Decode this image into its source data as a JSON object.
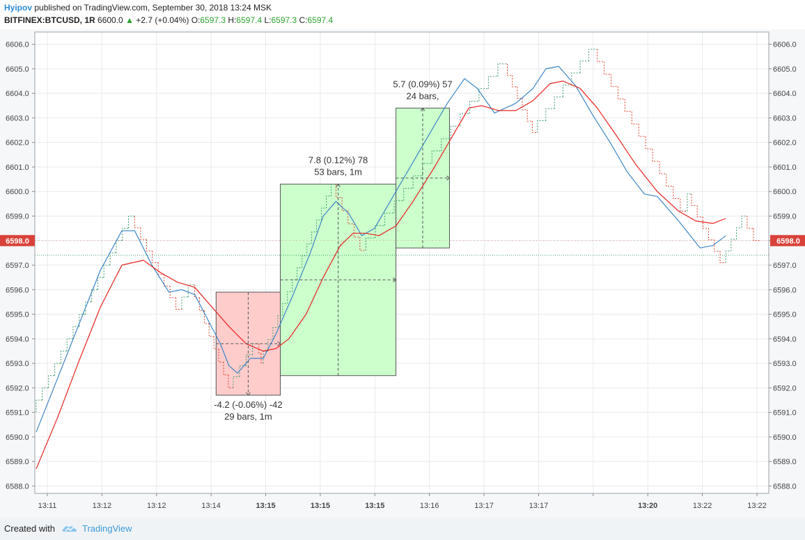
{
  "header": {
    "author": "Hyipov",
    "published": "published on TradingView.com, September 30, 2018 13:24 MSK",
    "symbol": "BITFINEX:BTCUSD, 1R",
    "last": "6600.0",
    "change": "+2.7 (+0.04%)",
    "o_label": "O:",
    "o_value": "6597.3",
    "h_label": "H:",
    "h_value": "6597.4",
    "l_label": "L:",
    "l_value": "6597.3",
    "c_label": "C:",
    "c_value": "6597.4"
  },
  "footer": {
    "created_with": "Created with",
    "brand": "TradingView",
    "logo_icon": "tradingview-cloud-icon"
  },
  "colors": {
    "up": "#3c9a6a",
    "down": "#e0402a",
    "ma_fast": "#3d85c6",
    "ma_slow": "#e8201c",
    "price_tag": "#d9423b",
    "profit_fill": "#ccffcc",
    "loss_fill": "#ffcccc"
  },
  "chart_data": {
    "type": "line",
    "ylim": [
      6587.7,
      6606.5
    ],
    "yticks": [
      6588,
      6589,
      6590,
      6591,
      6592,
      6593,
      6594,
      6595,
      6596,
      6597,
      6598,
      6599,
      6600,
      6601,
      6602,
      6603,
      6604,
      6605,
      6606
    ],
    "current_price": 6598.0,
    "last_close_line": 6597.4,
    "x_ticks": [
      {
        "label": "13:11",
        "bold": false
      },
      {
        "label": "13:12",
        "bold": false
      },
      {
        "label": "13:12",
        "bold": false
      },
      {
        "label": "13:14",
        "bold": false
      },
      {
        "label": "13:15",
        "bold": true
      },
      {
        "label": "13:15",
        "bold": true
      },
      {
        "label": "13:15",
        "bold": true
      },
      {
        "label": "13:16",
        "bold": false
      },
      {
        "label": "13:17",
        "bold": false
      },
      {
        "label": "13:17",
        "bold": false
      },
      {
        "label": "",
        "bold": false
      },
      {
        "label": "13:20",
        "bold": true
      },
      {
        "label": "13:22",
        "bold": false
      },
      {
        "label": "13:22",
        "bold": false
      }
    ],
    "renko_path": [
      [
        0,
        6591.0
      ],
      [
        23,
        6599.0
      ],
      [
        34,
        6595.2
      ],
      [
        37,
        6596.2
      ],
      [
        46,
        6592.0
      ],
      [
        52,
        6593.8
      ],
      [
        53,
        6593.0
      ],
      [
        70,
        6600.3
      ],
      [
        77,
        6597.6
      ],
      [
        110,
        6605.2
      ],
      [
        117,
        6602.4
      ],
      [
        131,
        6605.8
      ],
      [
        152,
        6599.2
      ],
      [
        153,
        6599.9
      ],
      [
        161,
        6597.1
      ],
      [
        166,
        6599.0
      ],
      [
        169,
        6598.0
      ]
    ],
    "series": [
      {
        "name": "",
        "role": "fast",
        "values": [
          [
            0,
            6590.2
          ],
          [
            5,
            6592.4
          ],
          [
            10,
            6594.6
          ],
          [
            15,
            6596.8
          ],
          [
            20,
            6598.4
          ],
          [
            23,
            6598.4
          ],
          [
            27,
            6597.0
          ],
          [
            31,
            6595.9
          ],
          [
            34,
            6596.0
          ],
          [
            37,
            6595.8
          ],
          [
            40,
            6594.8
          ],
          [
            43,
            6593.8
          ],
          [
            45,
            6592.9
          ],
          [
            47,
            6592.6
          ],
          [
            50,
            6593.2
          ],
          [
            53,
            6593.2
          ],
          [
            56,
            6594.2
          ],
          [
            60,
            6595.8
          ],
          [
            64,
            6597.5
          ],
          [
            67,
            6599.0
          ],
          [
            70,
            6599.6
          ],
          [
            73,
            6599.1
          ],
          [
            76,
            6598.2
          ],
          [
            79,
            6598.5
          ],
          [
            84,
            6600.0
          ],
          [
            90,
            6601.8
          ],
          [
            96,
            6603.6
          ],
          [
            100,
            6604.6
          ],
          [
            103,
            6604.2
          ],
          [
            107,
            6603.2
          ],
          [
            112,
            6603.6
          ],
          [
            116,
            6604.2
          ],
          [
            119,
            6605.0
          ],
          [
            122,
            6605.1
          ],
          [
            126,
            6604.3
          ],
          [
            130,
            6603.1
          ],
          [
            134,
            6602.0
          ],
          [
            138,
            6600.8
          ],
          [
            142,
            6599.9
          ],
          [
            145,
            6599.8
          ],
          [
            150,
            6598.8
          ],
          [
            155,
            6597.7
          ],
          [
            158,
            6597.8
          ],
          [
            161,
            6598.2
          ]
        ]
      },
      {
        "name": "",
        "role": "slow",
        "values": [
          [
            0,
            6588.7
          ],
          [
            5,
            6590.8
          ],
          [
            10,
            6593.1
          ],
          [
            15,
            6595.3
          ],
          [
            20,
            6597.0
          ],
          [
            25,
            6597.2
          ],
          [
            29,
            6596.7
          ],
          [
            33,
            6596.3
          ],
          [
            37,
            6596.1
          ],
          [
            41,
            6595.3
          ],
          [
            45,
            6594.5
          ],
          [
            49,
            6593.8
          ],
          [
            53,
            6593.5
          ],
          [
            56,
            6593.6
          ],
          [
            59,
            6594.0
          ],
          [
            63,
            6595.0
          ],
          [
            67,
            6596.5
          ],
          [
            71,
            6597.8
          ],
          [
            74,
            6598.3
          ],
          [
            77,
            6598.3
          ],
          [
            80,
            6598.2
          ],
          [
            84,
            6598.6
          ],
          [
            88,
            6599.6
          ],
          [
            93,
            6601.0
          ],
          [
            98,
            6602.5
          ],
          [
            101,
            6603.4
          ],
          [
            104,
            6603.5
          ],
          [
            108,
            6603.3
          ],
          [
            112,
            6603.3
          ],
          [
            116,
            6603.7
          ],
          [
            120,
            6604.4
          ],
          [
            123,
            6604.5
          ],
          [
            127,
            6604.2
          ],
          [
            131,
            6603.4
          ],
          [
            135,
            6602.4
          ],
          [
            140,
            6601.1
          ],
          [
            145,
            6600.0
          ],
          [
            150,
            6599.2
          ],
          [
            154,
            6598.8
          ],
          [
            158,
            6598.7
          ],
          [
            161,
            6598.9
          ]
        ]
      }
    ],
    "measures": [
      {
        "x0": 42,
        "x1": 57,
        "y_start": 6595.9,
        "y_end": 6591.7,
        "label1": "-4.2 (-0.06%) -42",
        "label2": "29 bars, 1m",
        "kind": "loss"
      },
      {
        "x0": 57,
        "x1": 84,
        "y_start": 6592.5,
        "y_end": 6600.3,
        "label1": "7.8 (0.12%) 78",
        "label2": "53 bars, 1m",
        "kind": "profit"
      },
      {
        "x0": 84,
        "x1": 96.5,
        "y_start": 6597.7,
        "y_end": 6603.4,
        "label1": "5.7 (0.09%) 57",
        "label2": "24 bars,",
        "kind": "profit"
      }
    ]
  }
}
